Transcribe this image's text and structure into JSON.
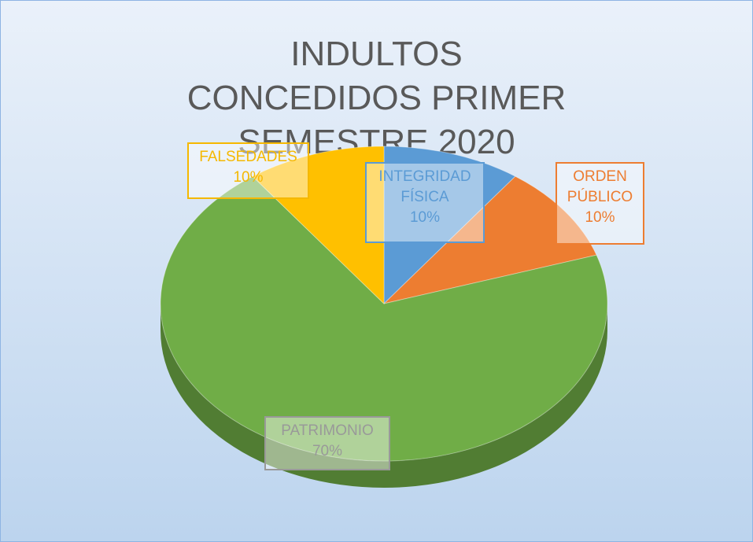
{
  "chart_data": {
    "type": "pie",
    "title": "INDULTOS CONCEDIDOS PRIMER SEMESTRE 2020",
    "categories": [
      "INTEGRIDAD FÍSICA",
      "ORDEN PÚBLICO",
      "PATRIMONIO",
      "FALSEDADES"
    ],
    "values": [
      10,
      10,
      70,
      10
    ],
    "value_labels": [
      "10%",
      "10%",
      "70%",
      "10%"
    ],
    "colors": [
      "#5b9bd5",
      "#ed7d31",
      "#70ad47",
      "#ffc000"
    ]
  }
}
